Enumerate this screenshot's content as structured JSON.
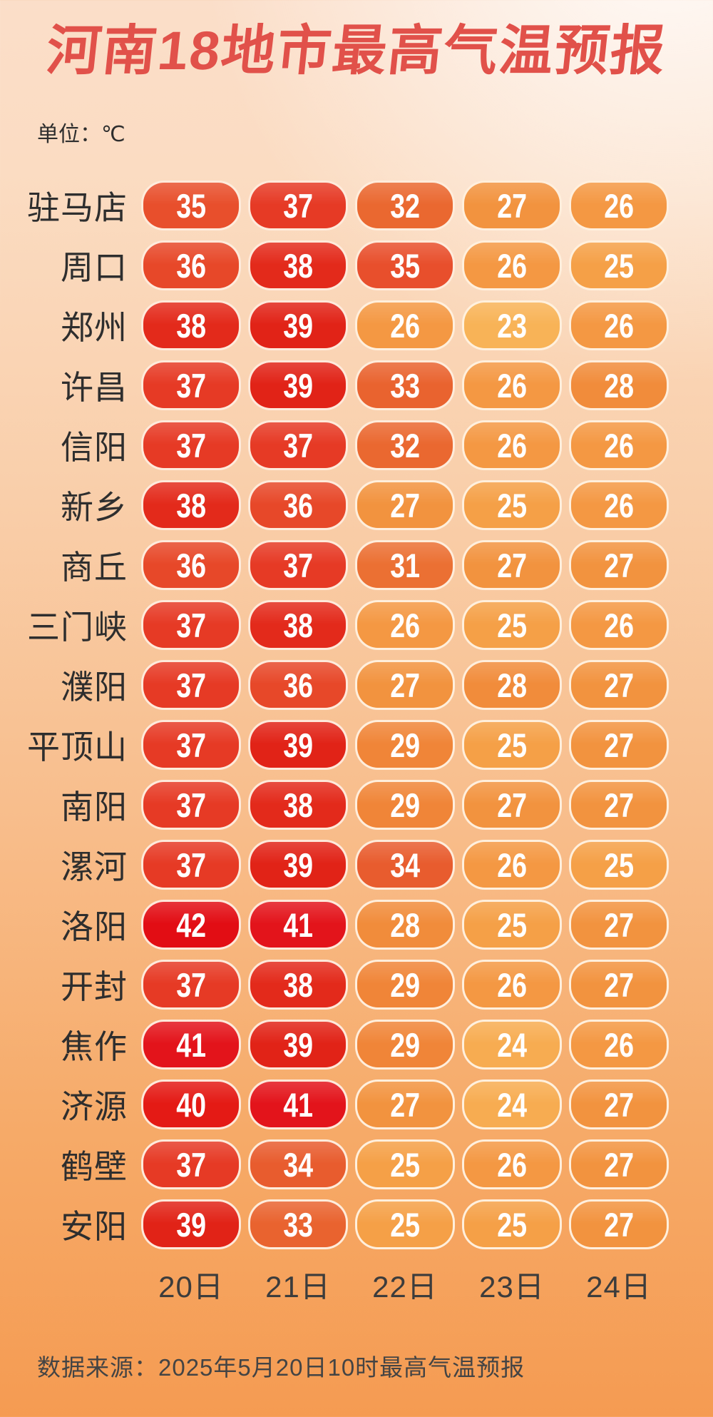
{
  "title": "河南18地市最高气温预报",
  "unit_label": "单位：℃",
  "source": "数据来源：2025年5月20日10时最高气温预报",
  "days": [
    "20日",
    "21日",
    "22日",
    "23日",
    "24日"
  ],
  "chart_data": {
    "type": "table",
    "title": "河南18地市最高气温预报",
    "unit": "℃",
    "columns": [
      "20日",
      "21日",
      "22日",
      "23日",
      "24日"
    ],
    "rows": [
      {
        "city": "驻马店",
        "temps": [
          35,
          37,
          32,
          27,
          26
        ]
      },
      {
        "city": "周口",
        "temps": [
          36,
          38,
          35,
          26,
          25
        ]
      },
      {
        "city": "郑州",
        "temps": [
          38,
          39,
          26,
          23,
          26
        ]
      },
      {
        "city": "许昌",
        "temps": [
          37,
          39,
          33,
          26,
          28
        ]
      },
      {
        "city": "信阳",
        "temps": [
          37,
          37,
          32,
          26,
          26
        ]
      },
      {
        "city": "新乡",
        "temps": [
          38,
          36,
          27,
          25,
          26
        ]
      },
      {
        "city": "商丘",
        "temps": [
          36,
          37,
          31,
          27,
          27
        ]
      },
      {
        "city": "三门峡",
        "temps": [
          37,
          38,
          26,
          25,
          26
        ]
      },
      {
        "city": "濮阳",
        "temps": [
          37,
          36,
          27,
          28,
          27
        ]
      },
      {
        "city": "平顶山",
        "temps": [
          37,
          39,
          29,
          25,
          27
        ]
      },
      {
        "city": "南阳",
        "temps": [
          37,
          38,
          29,
          27,
          27
        ]
      },
      {
        "city": "漯河",
        "temps": [
          37,
          39,
          34,
          26,
          25
        ]
      },
      {
        "city": "洛阳",
        "temps": [
          42,
          41,
          28,
          25,
          27
        ]
      },
      {
        "city": "开封",
        "temps": [
          37,
          38,
          29,
          26,
          27
        ]
      },
      {
        "city": "焦作",
        "temps": [
          41,
          39,
          29,
          24,
          26
        ]
      },
      {
        "city": "济源",
        "temps": [
          40,
          41,
          27,
          24,
          27
        ]
      },
      {
        "city": "鹤壁",
        "temps": [
          37,
          34,
          25,
          26,
          27
        ]
      },
      {
        "city": "安阳",
        "temps": [
          39,
          33,
          25,
          25,
          27
        ]
      }
    ]
  },
  "colors": {
    "title_text": "#e1514a",
    "label_text": "#2e2e2e",
    "day_text": "#3c3c3c",
    "source_text": "#444444",
    "pill_text": "#ffffff",
    "pill_border": "#fff3e5",
    "bg_top_left": "#fbdcc8",
    "bg_top_right": "#fefaf4",
    "bg_bottom": "#f59b52",
    "temp_colors": {
      "23": "#f8b357",
      "24": "#f7ac51",
      "25": "#f5a047",
      "26": "#f49843",
      "27": "#f2933f",
      "28": "#f18c3b",
      "29": "#f08538",
      "30": "#ee7c36",
      "31": "#eb7033",
      "32": "#ea6830",
      "33": "#e9632f",
      "34": "#e85c2e",
      "35": "#e84f2c",
      "36": "#e74829",
      "37": "#e63a25",
      "38": "#e32a1b",
      "39": "#e12317",
      "40": "#e41a15",
      "41": "#e3141b",
      "42": "#e20d14"
    }
  }
}
